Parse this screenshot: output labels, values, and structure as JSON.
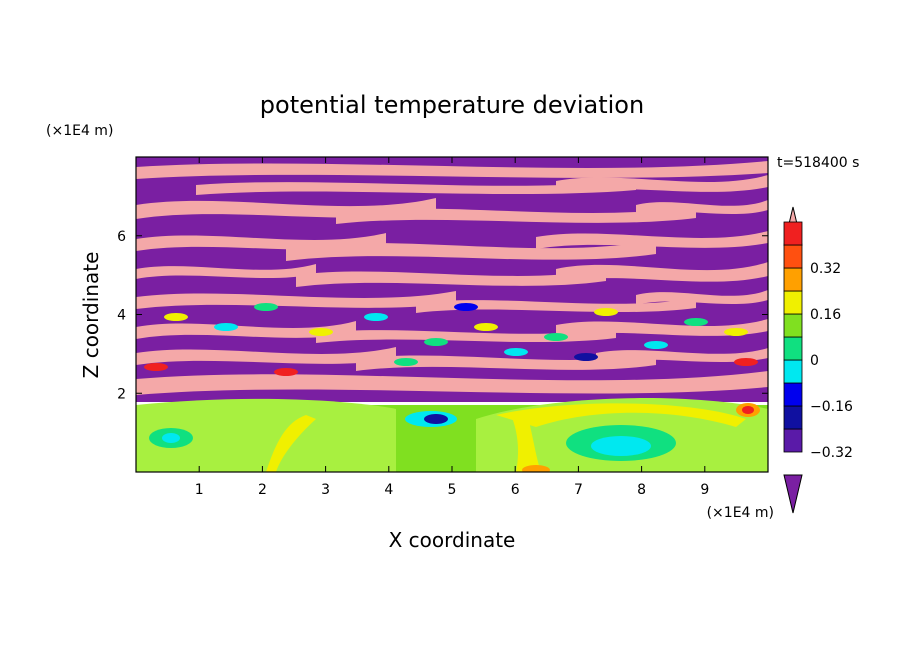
{
  "chart_data": {
    "type": "heatmap",
    "title": "potential temperature deviation",
    "xlabel": "X coordinate",
    "ylabel": "Z coordinate",
    "x_unit": "(×1E4 m)",
    "y_unit": "(×1E4 m)",
    "time_label": "t=518400 s",
    "xlim": [
      0,
      10
    ],
    "ylim": [
      0,
      8
    ],
    "x_ticks": [
      1,
      2,
      3,
      4,
      5,
      6,
      7,
      8,
      9
    ],
    "y_ticks": [
      2,
      4,
      6
    ],
    "colorbar": {
      "levels": [
        -0.4,
        -0.32,
        -0.24,
        -0.16,
        -0.08,
        0,
        0.08,
        0.16,
        0.24,
        0.32,
        0.4
      ],
      "tick_values": [
        -0.32,
        -0.16,
        0,
        0.16,
        0.32
      ],
      "tick_labels": [
        "−0.32",
        "−0.16",
        "0",
        "0.16",
        "0.32"
      ],
      "colors": [
        "#7a1fa2",
        "#5a1aa8",
        "#1010a0",
        "#0000ee",
        "#00e8f0",
        "#10e080",
        "#80e020",
        "#f0f000",
        "#ffa000",
        "#ff5010",
        "#f02020",
        "#f4a8a8"
      ],
      "extend": "both"
    },
    "palette": {
      "purple": "#7a1fa2",
      "pink": "#f4a8a8",
      "green": "#80e020",
      "lightgreen": "#a8f040",
      "yellow": "#f0f000",
      "cyan": "#00e8f0",
      "blue": "#0000ee",
      "navy": "#1010a0",
      "red": "#f02020",
      "orange": "#ffa000",
      "teal": "#10e080"
    }
  }
}
